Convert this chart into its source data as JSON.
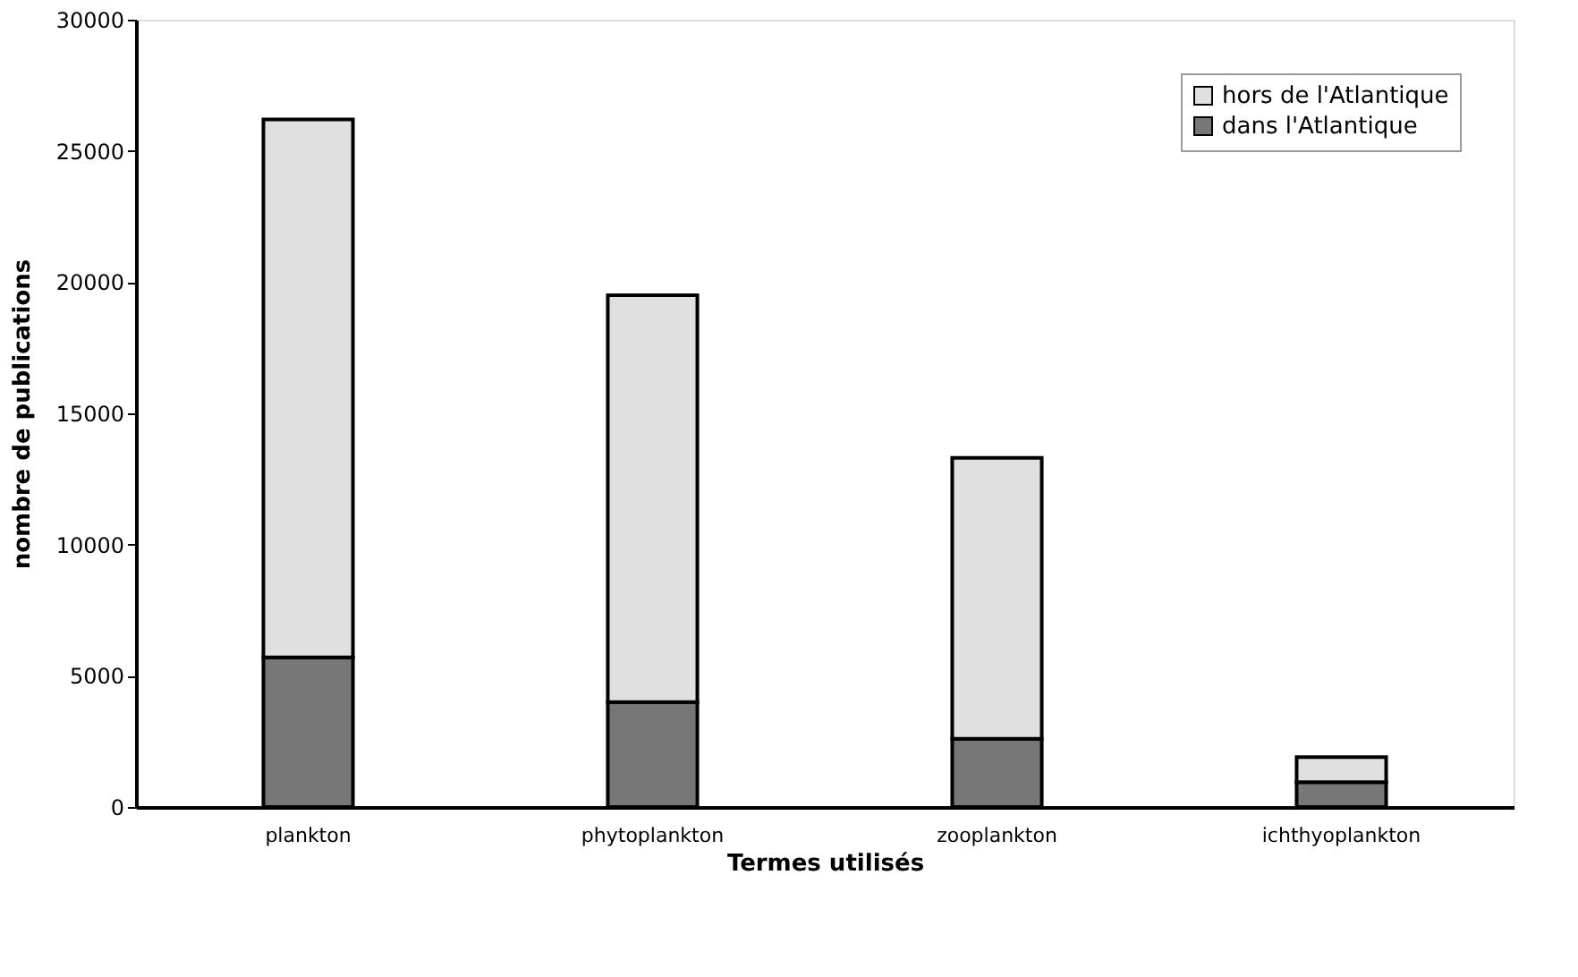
{
  "chart_data": {
    "type": "bar",
    "stacked": true,
    "xlabel": "Termes   utilisés",
    "ylabel": "nombre de publications",
    "categories": [
      "plankton",
      "phytoplankton",
      "zooplankton",
      "ichthyoplankton"
    ],
    "series": [
      {
        "name": "dans l'Atlantique",
        "color": "#777777",
        "values": [
          5700,
          4000,
          2600,
          950
        ]
      },
      {
        "name": "hors de l'Atlantique",
        "color": "#e0e0e0",
        "values": [
          20500,
          15500,
          10700,
          950
        ]
      }
    ],
    "ylim": [
      0,
      30000
    ],
    "yticks": [
      0,
      5000,
      10000,
      15000,
      20000,
      25000,
      30000
    ],
    "grid": false,
    "legend": "top right"
  }
}
